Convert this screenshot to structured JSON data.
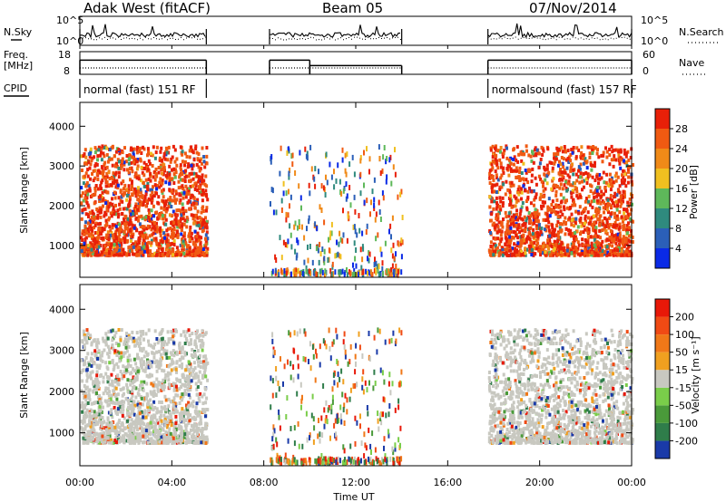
{
  "header": {
    "station": "Adak West (fitACF)",
    "beam": "Beam 05",
    "date": "07/Nov/2014"
  },
  "summary_panels": {
    "nsky_label": "N.Sky",
    "nsky_ticks": [
      "10^5",
      "10^0"
    ],
    "nsearch_label": "N.Search",
    "nsearch_ticks": [
      "10^5",
      "10^0"
    ],
    "freq_label": "Freq.",
    "freq_unit": "[MHz]",
    "freq_ticks": [
      "18",
      "8"
    ],
    "nave_label": "Nave",
    "nave_ticks": [
      "60",
      "0"
    ],
    "cpid_label": "CPID",
    "cpid_segments": [
      {
        "label": "normal (fast) 151 RF",
        "start_hr": 0.0,
        "end_hr": 5.5
      },
      {
        "label": "normalsound (fast) 157 RF",
        "start_hr": 17.75,
        "end_hr": 24.0
      }
    ],
    "data_intervals_hr": [
      [
        0.0,
        5.5
      ],
      [
        8.25,
        14.0
      ],
      [
        17.75,
        24.0
      ]
    ],
    "freq_levels": [
      {
        "start_hr": 0.0,
        "end_hr": 5.5,
        "mhz": 14.5
      },
      {
        "start_hr": 8.25,
        "end_hr": 10.0,
        "mhz": 14.5
      },
      {
        "start_hr": 10.0,
        "end_hr": 14.0,
        "mhz": 12.0
      },
      {
        "start_hr": 17.75,
        "end_hr": 24.0,
        "mhz": 14.5
      }
    ]
  },
  "chart_data": [
    {
      "type": "heatmap",
      "name": "power",
      "ylabel": "Slant Range [km]",
      "yticks": [
        "1000",
        "2000",
        "3000",
        "4000"
      ],
      "ytick_values": [
        1000,
        2000,
        3000,
        4000
      ],
      "ylim": [
        200,
        4600
      ],
      "xlim": [
        0,
        24
      ],
      "colorbar_label": "Power [dB]",
      "colorbar_ticks": [
        "4",
        "8",
        "12",
        "16",
        "20",
        "24",
        "28"
      ],
      "colorbar_colors": [
        "#0a2ae6",
        "#2b5fb8",
        "#2f8a7e",
        "#5eb85a",
        "#f0c020",
        "#f08a18",
        "#f05a12",
        "#e82008"
      ],
      "echo_regions": [
        {
          "start_hr": 0.0,
          "end_hr": 5.5,
          "range_km": [
            750,
            3500
          ],
          "level": "strong"
        },
        {
          "start_hr": 8.25,
          "end_hr": 14.0,
          "range_km": [
            250,
            3500
          ],
          "level": "sparse"
        },
        {
          "start_hr": 17.75,
          "end_hr": 24.0,
          "range_km": [
            750,
            3500
          ],
          "level": "strong"
        }
      ]
    },
    {
      "type": "heatmap",
      "name": "velocity",
      "ylabel": "Slant Range [km]",
      "yticks": [
        "1000",
        "2000",
        "3000",
        "4000"
      ],
      "ytick_values": [
        1000,
        2000,
        3000,
        4000
      ],
      "ylim": [
        200,
        4600
      ],
      "xlim": [
        0,
        24
      ],
      "colorbar_label": "Velocity [m s⁻¹]",
      "colorbar_ticks": [
        "200",
        "100",
        "50",
        "15",
        "-15",
        "-50",
        "-100",
        "-200"
      ],
      "colorbar_colors": [
        "#1a3aa8",
        "#2f7d4a",
        "#4a9a3a",
        "#7acd4a",
        "#c8c8c0",
        "#f0a020",
        "#f07818",
        "#f04a14",
        "#e81808"
      ],
      "echo_regions": [
        {
          "start_hr": 0.0,
          "end_hr": 5.5,
          "range_km": [
            750,
            3500
          ],
          "dominant": "ground scatter"
        },
        {
          "start_hr": 8.25,
          "end_hr": 14.0,
          "range_km": [
            250,
            3500
          ],
          "dominant": "sparse"
        },
        {
          "start_hr": 17.75,
          "end_hr": 24.0,
          "range_km": [
            750,
            3500
          ],
          "dominant": "ground scatter"
        }
      ]
    }
  ],
  "x_axis": {
    "label": "Time UT",
    "ticks": [
      "00:00",
      "04:00",
      "08:00",
      "12:00",
      "16:00",
      "20:00",
      "00:00"
    ],
    "tick_hours": [
      0,
      4,
      8,
      12,
      16,
      20,
      24
    ]
  }
}
